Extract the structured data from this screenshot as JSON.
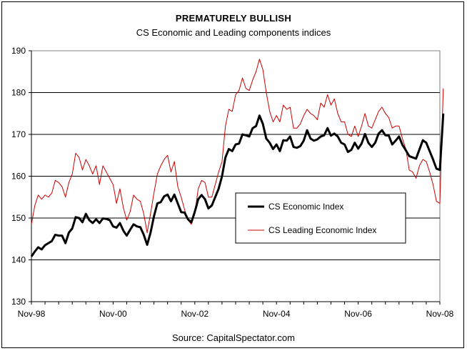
{
  "chart_data": {
    "type": "line",
    "title": "PREMATURELY BULLISH",
    "subtitle": "CS Economic and Leading components indices",
    "source": "Source: CapitalSpectator.com",
    "ylim": [
      130,
      190
    ],
    "yticks": [
      130,
      140,
      150,
      160,
      170,
      180,
      190
    ],
    "xlim": [
      0,
      120
    ],
    "xticks": [
      {
        "label": "Nov-98",
        "month": 0
      },
      {
        "label": "Nov-00",
        "month": 24
      },
      {
        "label": "Nov-02",
        "month": 48
      },
      {
        "label": "Nov-04",
        "month": 72
      },
      {
        "label": "Nov-06",
        "month": 96
      },
      {
        "label": "Nov-08",
        "month": 120
      }
    ],
    "grid": "horizontal",
    "legend_position": "center-right",
    "series": [
      {
        "name": "CS Economic Index",
        "color": "#000000",
        "values": [
          140.8,
          142.0,
          143.0,
          142.5,
          143.5,
          144.0,
          144.5,
          146.0,
          145.8,
          145.8,
          144.0,
          146.5,
          147.5,
          150.2,
          150.0,
          149.0,
          151.0,
          149.5,
          148.8,
          149.7,
          148.8,
          149.9,
          149.8,
          149.5,
          148.0,
          147.7,
          148.8,
          147.0,
          145.8,
          147.2,
          148.5,
          148.0,
          147.8,
          146.0,
          143.6,
          146.5,
          150.4,
          153.5,
          153.8,
          155.2,
          155.6,
          154.0,
          155.6,
          153.5,
          151.4,
          151.3,
          149.7,
          149.0,
          151.5,
          154.5,
          155.5,
          154.5,
          152.3,
          153.0,
          155.0,
          157.0,
          160.0,
          164.5,
          166.5,
          166.0,
          167.6,
          167.8,
          170.0,
          169.8,
          169.5,
          171.5,
          172.0,
          174.5,
          172.5,
          169.0,
          168.0,
          166.5,
          167.6,
          166.0,
          168.6,
          168.5,
          169.5,
          167.0,
          166.8,
          167.2,
          168.5,
          171.0,
          169.0,
          168.5,
          168.8,
          169.5,
          169.8,
          171.5,
          169.7,
          170.2,
          169.5,
          168.0,
          167.6,
          165.8,
          166.3,
          168.0,
          166.6,
          167.8,
          170.1,
          168.0,
          167.0,
          168.0,
          170.2,
          171.0,
          169.8,
          169.7,
          167.6,
          168.5,
          169.5,
          167.5,
          166.2,
          164.8,
          164.5,
          164.2,
          166.4,
          168.6,
          168.0,
          166.0,
          164.0,
          161.8,
          161.5,
          175.0
        ]
      },
      {
        "name": "CS Leading Economic Index",
        "color": "#cc0000",
        "values": [
          148.5,
          153.0,
          155.5,
          154.5,
          155.5,
          155.0,
          156.0,
          159.0,
          158.5,
          157.5,
          155.0,
          158.5,
          160.5,
          165.5,
          164.5,
          161.5,
          164.0,
          162.5,
          160.5,
          162.5,
          158.0,
          162.5,
          161.0,
          159.5,
          158.0,
          153.5,
          157.0,
          152.5,
          149.5,
          151.5,
          155.5,
          154.5,
          154.0,
          151.0,
          146.5,
          151.0,
          156.0,
          160.5,
          162.5,
          164.0,
          165.0,
          161.0,
          163.5,
          157.5,
          155.0,
          152.0,
          149.5,
          148.5,
          151.0,
          157.0,
          159.0,
          158.5,
          155.0,
          155.0,
          158.0,
          161.0,
          163.5,
          172.0,
          176.0,
          175.5,
          179.5,
          180.5,
          183.5,
          181.0,
          180.5,
          183.0,
          185.0,
          188.0,
          185.5,
          180.0,
          175.5,
          173.0,
          174.5,
          173.0,
          177.0,
          176.0,
          176.5,
          171.5,
          171.5,
          172.5,
          174.5,
          176.0,
          175.0,
          174.5,
          173.5,
          177.5,
          176.5,
          179.5,
          177.0,
          178.5,
          175.0,
          173.0,
          173.0,
          170.0,
          169.5,
          172.0,
          169.5,
          172.0,
          175.0,
          172.0,
          171.5,
          173.5,
          175.5,
          176.5,
          175.0,
          174.0,
          171.5,
          172.0,
          172.0,
          169.0,
          166.5,
          161.5,
          161.0,
          159.5,
          162.5,
          164.0,
          163.5,
          161.0,
          158.0,
          154.0,
          153.5,
          181.0
        ]
      }
    ]
  }
}
